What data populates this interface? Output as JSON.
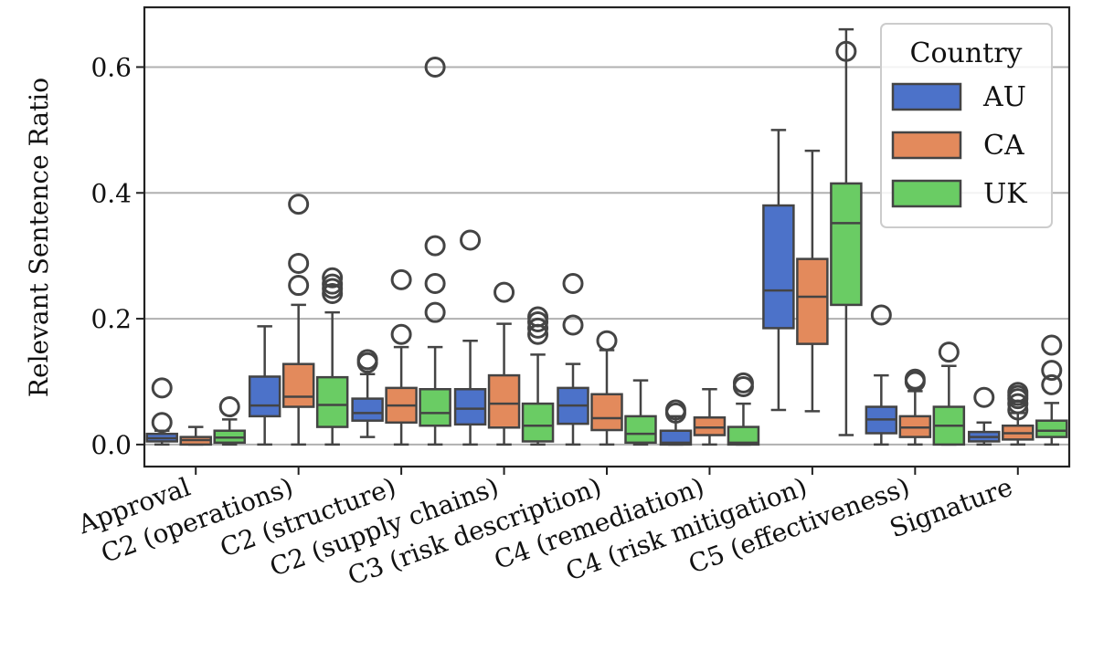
{
  "chart_data": {
    "type": "box",
    "ylabel": "Relevant Sentence Ratio",
    "xlabel": "",
    "ylim": [
      -0.035,
      0.695
    ],
    "yticks": [
      "0.0",
      "0.2",
      "0.4",
      "0.6"
    ],
    "grid": "horizontal",
    "legend": {
      "title": "Country",
      "placement": "top-right"
    },
    "categories": [
      "Approval",
      "C2 (operations)",
      "C2 (structure)",
      "C2 (supply chains)",
      "C3 (risk description)",
      "C4 (remediation)",
      "C4 (risk mitigation)",
      "C5 (effectiveness)",
      "Signature"
    ],
    "series": [
      {
        "name": "AU",
        "color": "#4c72c9",
        "boxes": [
          {
            "whislo": 0.0,
            "q1": 0.005,
            "med": 0.01,
            "q3": 0.017,
            "whishi": 0.022,
            "fliers": [
              0.035,
              0.09
            ]
          },
          {
            "whislo": 0.0,
            "q1": 0.045,
            "med": 0.062,
            "q3": 0.108,
            "whishi": 0.188,
            "fliers": []
          },
          {
            "whislo": 0.012,
            "q1": 0.038,
            "med": 0.05,
            "q3": 0.073,
            "whishi": 0.112,
            "fliers": [
              0.13,
              0.135
            ]
          },
          {
            "whislo": 0.0,
            "q1": 0.032,
            "med": 0.057,
            "q3": 0.088,
            "whishi": 0.165,
            "fliers": [
              0.325
            ]
          },
          {
            "whislo": 0.0,
            "q1": 0.033,
            "med": 0.062,
            "q3": 0.09,
            "whishi": 0.128,
            "fliers": [
              0.19,
              0.256
            ]
          },
          {
            "whislo": 0.0,
            "q1": 0.0,
            "med": 0.003,
            "q3": 0.022,
            "whishi": 0.045,
            "fliers": [
              0.05,
              0.055
            ]
          },
          {
            "whislo": 0.055,
            "q1": 0.185,
            "med": 0.245,
            "q3": 0.38,
            "whishi": 0.5,
            "fliers": []
          },
          {
            "whislo": 0.0,
            "q1": 0.018,
            "med": 0.04,
            "q3": 0.06,
            "whishi": 0.11,
            "fliers": [
              0.206
            ]
          },
          {
            "whislo": 0.0,
            "q1": 0.005,
            "med": 0.012,
            "q3": 0.02,
            "whishi": 0.035,
            "fliers": [
              0.075
            ]
          }
        ]
      },
      {
        "name": "CA",
        "color": "#e38a5c",
        "boxes": [
          {
            "whislo": 0.0,
            "q1": 0.0,
            "med": 0.007,
            "q3": 0.012,
            "whishi": 0.028,
            "fliers": []
          },
          {
            "whislo": 0.0,
            "q1": 0.06,
            "med": 0.076,
            "q3": 0.128,
            "whishi": 0.222,
            "fliers": [
              0.253,
              0.288,
              0.382
            ]
          },
          {
            "whislo": 0.0,
            "q1": 0.035,
            "med": 0.062,
            "q3": 0.09,
            "whishi": 0.155,
            "fliers": [
              0.175,
              0.262
            ]
          },
          {
            "whislo": 0.0,
            "q1": 0.027,
            "med": 0.065,
            "q3": 0.11,
            "whishi": 0.192,
            "fliers": [
              0.242
            ]
          },
          {
            "whislo": 0.0,
            "q1": 0.023,
            "med": 0.042,
            "q3": 0.08,
            "whishi": 0.15,
            "fliers": [
              0.165
            ]
          },
          {
            "whislo": 0.0,
            "q1": 0.015,
            "med": 0.027,
            "q3": 0.043,
            "whishi": 0.088,
            "fliers": []
          },
          {
            "whislo": 0.053,
            "q1": 0.16,
            "med": 0.235,
            "q3": 0.295,
            "whishi": 0.467,
            "fliers": []
          },
          {
            "whislo": 0.0,
            "q1": 0.012,
            "med": 0.027,
            "q3": 0.045,
            "whishi": 0.085,
            "fliers": [
              0.1,
              0.104
            ]
          },
          {
            "whislo": 0.0,
            "q1": 0.008,
            "med": 0.018,
            "q3": 0.03,
            "whishi": 0.05,
            "fliers": [
              0.055,
              0.065,
              0.073,
              0.078,
              0.083
            ]
          }
        ]
      },
      {
        "name": "UK",
        "color": "#6acc64",
        "boxes": [
          {
            "whislo": 0.0,
            "q1": 0.003,
            "med": 0.011,
            "q3": 0.022,
            "whishi": 0.04,
            "fliers": [
              0.06
            ]
          },
          {
            "whislo": 0.0,
            "q1": 0.028,
            "med": 0.063,
            "q3": 0.107,
            "whishi": 0.21,
            "fliers": [
              0.24,
              0.248,
              0.255,
              0.265
            ]
          },
          {
            "whislo": 0.0,
            "q1": 0.03,
            "med": 0.05,
            "q3": 0.088,
            "whishi": 0.155,
            "fliers": [
              0.21,
              0.256,
              0.316,
              0.6
            ]
          },
          {
            "whislo": 0.0,
            "q1": 0.005,
            "med": 0.03,
            "q3": 0.065,
            "whishi": 0.143,
            "fliers": [
              0.175,
              0.185,
              0.195,
              0.203
            ]
          },
          {
            "whislo": 0.0,
            "q1": 0.003,
            "med": 0.017,
            "q3": 0.045,
            "whishi": 0.102,
            "fliers": []
          },
          {
            "whislo": 0.0,
            "q1": 0.0,
            "med": 0.003,
            "q3": 0.028,
            "whishi": 0.065,
            "fliers": [
              0.092,
              0.098
            ]
          },
          {
            "whislo": 0.015,
            "q1": 0.222,
            "med": 0.352,
            "q3": 0.415,
            "whishi": 0.66,
            "fliers": [
              0.625
            ]
          },
          {
            "whislo": 0.0,
            "q1": 0.0,
            "med": 0.03,
            "q3": 0.06,
            "whishi": 0.125,
            "fliers": [
              0.147
            ]
          },
          {
            "whislo": 0.0,
            "q1": 0.012,
            "med": 0.022,
            "q3": 0.038,
            "whishi": 0.066,
            "fliers": [
              0.095,
              0.118,
              0.158
            ]
          }
        ]
      }
    ]
  }
}
